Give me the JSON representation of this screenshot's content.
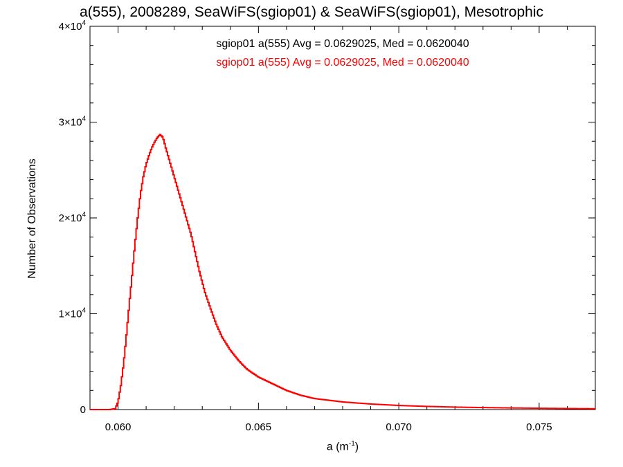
{
  "chart_data": {
    "type": "histogram-step",
    "title": "a(555), 2008289, SeaWiFS(sgiop01) & SeaWiFS(sgiop01), Mesotrophic",
    "xlabel_base": "a (m",
    "xlabel_sup": "-1",
    "xlabel_tail": ")",
    "ylabel": "Number of Observations",
    "xlim": [
      0.059,
      0.077
    ],
    "ylim": [
      0,
      40000
    ],
    "x_ticks": [
      {
        "value": 0.06,
        "label": "0.060"
      },
      {
        "value": 0.065,
        "label": "0.065"
      },
      {
        "value": 0.07,
        "label": "0.070"
      },
      {
        "value": 0.075,
        "label": "0.075"
      }
    ],
    "y_ticks": [
      {
        "value": 0,
        "mant": "0",
        "exp": ""
      },
      {
        "value": 10000,
        "mant": "1×10",
        "exp": "4"
      },
      {
        "value": 20000,
        "mant": "2×10",
        "exp": "4"
      },
      {
        "value": 30000,
        "mant": "3×10",
        "exp": "4"
      },
      {
        "value": 40000,
        "mant": "4×10",
        "exp": "4"
      }
    ],
    "legend": [
      {
        "text": "sgiop01 a(555) Avg = 0.0629025, Med = 0.0620040",
        "color": "#000000"
      },
      {
        "text": "sgiop01 a(555) Avg = 0.0629025, Med = 0.0620040",
        "color": "#ff0000"
      }
    ],
    "series": [
      {
        "color": "#ff0000",
        "curve": [
          [
            0.059,
            0
          ],
          [
            0.0597,
            0
          ],
          [
            0.0599,
            100
          ],
          [
            0.06,
            800
          ],
          [
            0.0601,
            2500
          ],
          [
            0.0602,
            4800
          ],
          [
            0.0603,
            7800
          ],
          [
            0.0604,
            11000
          ],
          [
            0.0605,
            14000
          ],
          [
            0.0606,
            17200
          ],
          [
            0.0607,
            20000
          ],
          [
            0.0608,
            22500
          ],
          [
            0.0609,
            24300
          ],
          [
            0.061,
            25600
          ],
          [
            0.0611,
            26500
          ],
          [
            0.0612,
            27300
          ],
          [
            0.0613,
            27900
          ],
          [
            0.0614,
            28400
          ],
          [
            0.0615,
            28700
          ],
          [
            0.0616,
            28400
          ],
          [
            0.0617,
            27300
          ],
          [
            0.0618,
            26300
          ],
          [
            0.0619,
            25300
          ],
          [
            0.062,
            24300
          ],
          [
            0.0621,
            23300
          ],
          [
            0.0622,
            22300
          ],
          [
            0.0623,
            21300
          ],
          [
            0.0624,
            20300
          ],
          [
            0.0625,
            19300
          ],
          [
            0.0626,
            18300
          ],
          [
            0.0627,
            17000
          ],
          [
            0.0628,
            15700
          ],
          [
            0.0629,
            14400
          ],
          [
            0.063,
            13300
          ],
          [
            0.0631,
            12200
          ],
          [
            0.0633,
            10500
          ],
          [
            0.0635,
            8900
          ],
          [
            0.0637,
            7600
          ],
          [
            0.064,
            6200
          ],
          [
            0.0643,
            5100
          ],
          [
            0.0646,
            4200
          ],
          [
            0.065,
            3400
          ],
          [
            0.0655,
            2700
          ],
          [
            0.066,
            2000
          ],
          [
            0.0665,
            1500
          ],
          [
            0.067,
            1150
          ],
          [
            0.068,
            800
          ],
          [
            0.069,
            580
          ],
          [
            0.07,
            430
          ],
          [
            0.071,
            330
          ],
          [
            0.072,
            260
          ],
          [
            0.073,
            210
          ],
          [
            0.074,
            170
          ],
          [
            0.075,
            140
          ],
          [
            0.076,
            110
          ],
          [
            0.077,
            90
          ]
        ]
      }
    ]
  }
}
